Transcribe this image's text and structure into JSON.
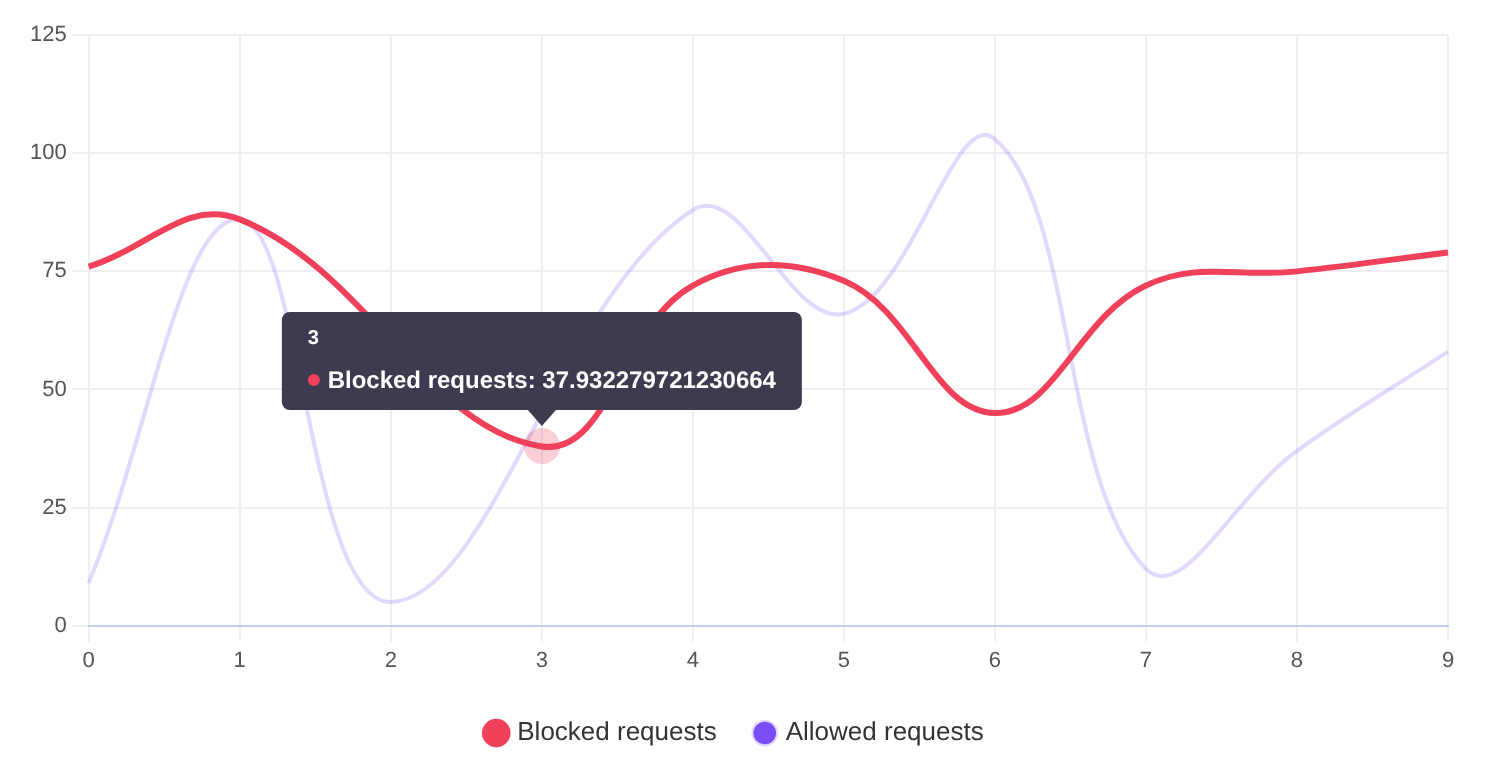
{
  "chart_data": {
    "type": "line",
    "categories": [
      "0",
      "1",
      "2",
      "3",
      "4",
      "5",
      "6",
      "7",
      "8",
      "9"
    ],
    "series": [
      {
        "name": "Blocked requests",
        "color": "#f0405a",
        "values": [
          76,
          86,
          null,
          37.932279721230664,
          72,
          73,
          45,
          72,
          75,
          79
        ]
      },
      {
        "name": "Allowed requests",
        "color": "#7b4ef5",
        "values": [
          9,
          86,
          5,
          null,
          88,
          66,
          103,
          12,
          37,
          58
        ]
      }
    ],
    "ylim": [
      0,
      125
    ],
    "yticks": [
      0,
      25,
      50,
      75,
      100,
      125
    ],
    "grid": true,
    "legend": "bottom",
    "marker": "none",
    "line_style": "solid",
    "annotations": [
      "3",
      {
        "text": "Blocked requests: 37.932279721230664",
        "x": "3",
        "y": 37.932279721230664
      }
    ]
  }
}
